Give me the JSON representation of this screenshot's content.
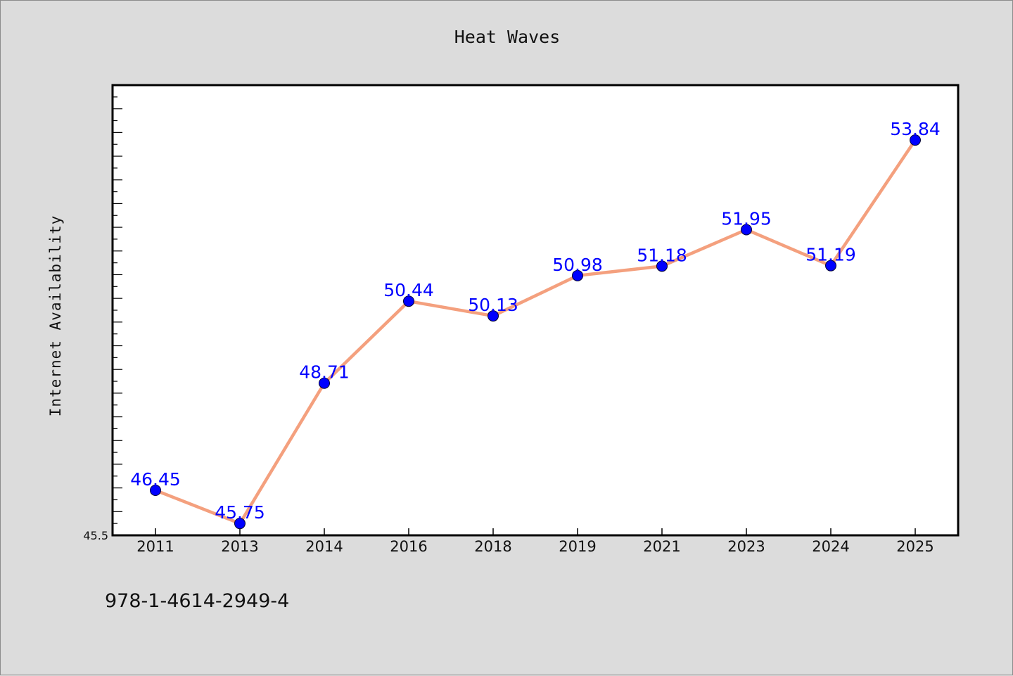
{
  "chart_data": {
    "type": "line",
    "title": "Heat Waves",
    "xlabel": "",
    "ylabel": "Internet Availability",
    "categories": [
      "2011",
      "2013",
      "2014",
      "2016",
      "2018",
      "2019",
      "2021",
      "2023",
      "2024",
      "2025"
    ],
    "values": [
      46.45,
      45.75,
      48.71,
      50.44,
      50.13,
      50.98,
      51.18,
      51.95,
      51.19,
      53.84
    ],
    "data_labels": [
      "46.45",
      "45.75",
      "48.71",
      "50.44",
      "50.13",
      "50.98",
      "51.18",
      "51.95",
      "51.19",
      "53.84"
    ],
    "ylim": [
      45.5,
      55.0
    ],
    "y_tick_label": "45.5",
    "grid": false,
    "line_color": "#f4a07e",
    "marker_color": "#0000ff",
    "label_color": "#0000ff"
  },
  "footer": {
    "isbn": "978-1-4614-2949-4"
  }
}
